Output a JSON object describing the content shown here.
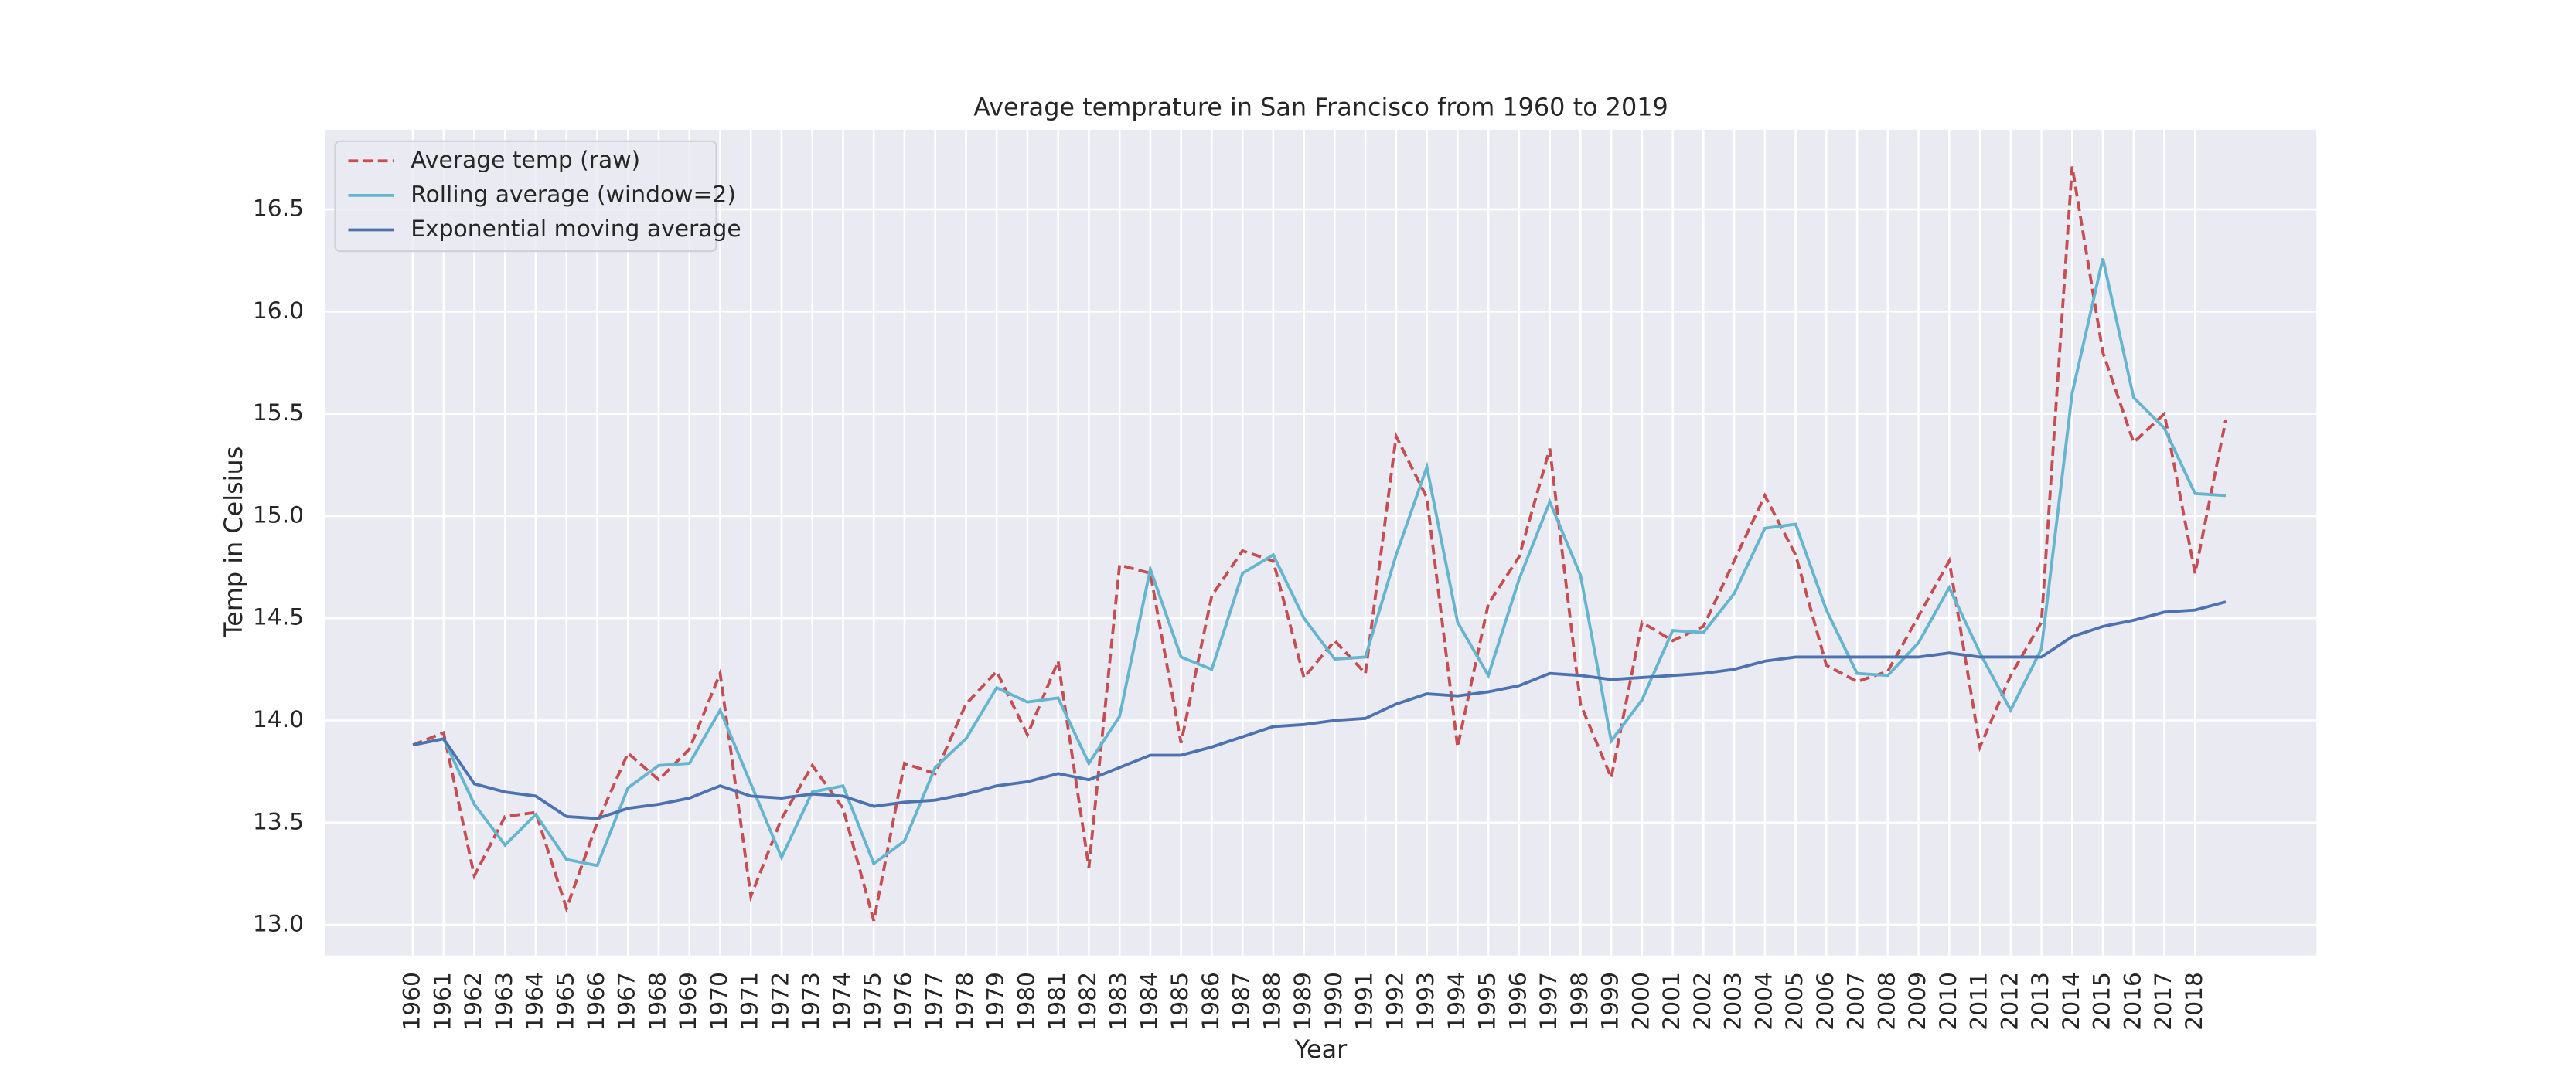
{
  "chart_data": {
    "type": "line",
    "title": "Average temprature in San Francisco from 1960 to 2019",
    "xlabel": "Year",
    "ylabel": "Temp in Celsius",
    "x": [
      1960,
      1961,
      1962,
      1963,
      1964,
      1965,
      1966,
      1967,
      1968,
      1969,
      1970,
      1971,
      1972,
      1973,
      1974,
      1975,
      1976,
      1977,
      1978,
      1979,
      1980,
      1981,
      1982,
      1983,
      1984,
      1985,
      1986,
      1987,
      1988,
      1989,
      1990,
      1991,
      1992,
      1993,
      1994,
      1995,
      1996,
      1997,
      1998,
      1999,
      2000,
      2001,
      2002,
      2003,
      2004,
      2005,
      2006,
      2007,
      2008,
      2009,
      2010,
      2011,
      2012,
      2013,
      2014,
      2015,
      2016,
      2017,
      2018,
      2019
    ],
    "xlim": [
      1957.15,
      2021.95
    ],
    "xticks": [
      1960,
      1961,
      1962,
      1963,
      1964,
      1965,
      1966,
      1967,
      1968,
      1969,
      1970,
      1971,
      1972,
      1973,
      1974,
      1975,
      1976,
      1977,
      1978,
      1979,
      1980,
      1981,
      1982,
      1983,
      1984,
      1985,
      1986,
      1987,
      1988,
      1989,
      1990,
      1991,
      1992,
      1993,
      1994,
      1995,
      1996,
      1997,
      1998,
      1999,
      2000,
      2001,
      2002,
      2003,
      2004,
      2005,
      2006,
      2007,
      2008,
      2009,
      2010,
      2011,
      2012,
      2013,
      2014,
      2015,
      2016,
      2017,
      2018
    ],
    "ylim": [
      12.85,
      16.89
    ],
    "yticks": [
      {
        "value": 13.0,
        "label": "13.0"
      },
      13.5,
      {
        "value": 14.0,
        "label": "14.0"
      },
      14.5,
      {
        "value": 15.0,
        "label": "15.0"
      },
      15.5,
      {
        "value": 16.0,
        "label": "16.0"
      },
      16.5
    ],
    "grid": true,
    "legend": "upper left",
    "series": [
      {
        "name": "Average temp (raw)",
        "color": "#c44e52",
        "linestyle": "dashed",
        "values": [
          13.88,
          13.94,
          13.24,
          13.53,
          13.55,
          13.08,
          13.5,
          13.84,
          13.71,
          13.86,
          14.23,
          13.14,
          13.52,
          13.78,
          13.57,
          13.02,
          13.79,
          13.74,
          14.08,
          14.24,
          13.93,
          14.29,
          13.28,
          14.76,
          14.72,
          13.89,
          14.61,
          14.83,
          14.78,
          14.21,
          14.39,
          14.23,
          15.39,
          15.09,
          13.87,
          14.57,
          14.8,
          15.33,
          14.08,
          13.72,
          14.48,
          14.39,
          14.46,
          14.78,
          15.1,
          14.81,
          14.27,
          14.19,
          14.24,
          14.51,
          14.78,
          13.87,
          14.22,
          14.48,
          16.71,
          15.8,
          15.36,
          15.5,
          14.72,
          15.47
        ]
      },
      {
        "name": "Rolling average (window=2)",
        "color": "#64b5cd",
        "linestyle": "solid",
        "values": [
          13.88,
          13.91,
          13.59,
          13.39,
          13.54,
          13.32,
          13.29,
          13.67,
          13.78,
          13.79,
          14.05,
          13.69,
          13.33,
          13.65,
          13.68,
          13.3,
          13.41,
          13.77,
          13.91,
          14.16,
          14.09,
          14.11,
          13.79,
          14.02,
          14.74,
          14.31,
          14.25,
          14.72,
          14.81,
          14.5,
          14.3,
          14.31,
          14.81,
          15.24,
          14.48,
          14.22,
          14.69,
          15.07,
          14.71,
          13.9,
          14.1,
          14.44,
          14.43,
          14.62,
          14.94,
          14.96,
          14.54,
          14.23,
          14.22,
          14.38,
          14.65,
          14.33,
          14.05,
          14.35,
          15.6,
          16.26,
          15.58,
          15.43,
          15.11,
          15.1
        ]
      },
      {
        "name": "Exponential moving average",
        "color": "#4c72b0",
        "linestyle": "solid",
        "values": [
          13.88,
          13.91,
          13.69,
          13.65,
          13.63,
          13.53,
          13.52,
          13.57,
          13.59,
          13.62,
          13.68,
          13.63,
          13.62,
          13.64,
          13.63,
          13.58,
          13.6,
          13.61,
          13.64,
          13.68,
          13.7,
          13.74,
          13.71,
          13.77,
          13.83,
          13.83,
          13.87,
          13.92,
          13.97,
          13.98,
          14.0,
          14.01,
          14.08,
          14.13,
          14.12,
          14.14,
          14.17,
          14.23,
          14.22,
          14.2,
          14.21,
          14.22,
          14.23,
          14.25,
          14.29,
          14.31,
          14.31,
          14.31,
          14.31,
          14.31,
          14.33,
          14.31,
          14.31,
          14.31,
          14.41,
          14.46,
          14.49,
          14.53,
          14.54,
          14.58
        ]
      }
    ]
  }
}
